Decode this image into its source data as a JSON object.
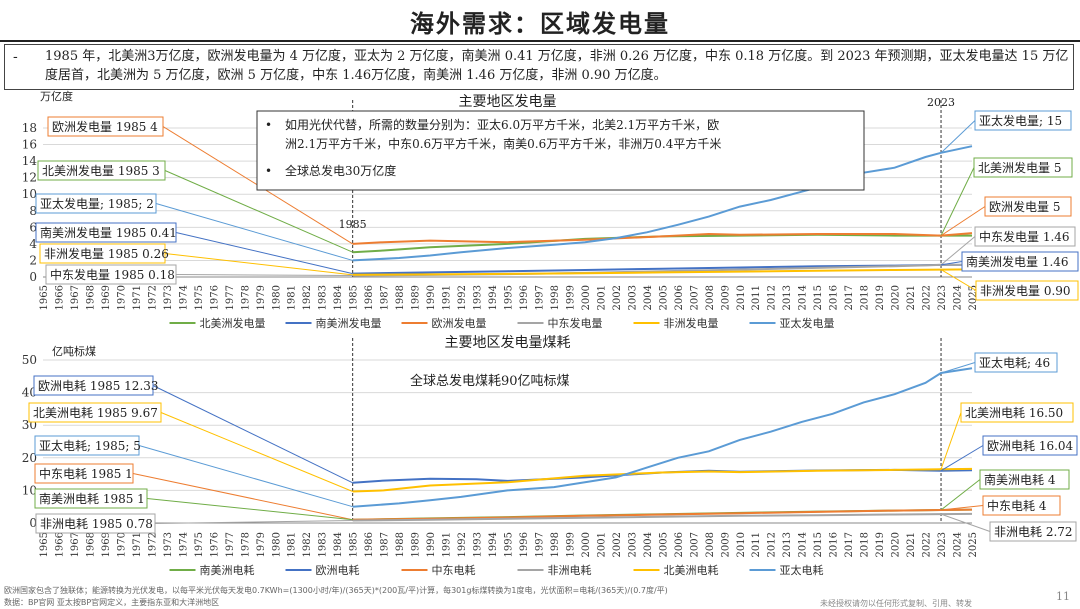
{
  "page": {
    "title": "海外需求：区域发电量",
    "summary_bullet": "-",
    "summary": "1985 年，北美洲3万亿度，欧洲发电量为 4 万亿度，亚太为 2 万亿度，南美洲 0.41 万亿度，非洲 0.26 万亿度，中东 0.18 万亿度。到 2023 年预测期，亚太发电量达 15 万亿度居首，北美洲为 5 万亿度，欧洲 5 万亿度，中东 1.46万亿度，南美洲 1.46 万亿度，非洲 0.90 万亿度。",
    "footnote": "欧洲国家包含了独联体；能源转换为光伏发电，以每平米光伏每天发电0.7KWh=(1300小时/年)/(365天)*(200瓦/平)计算，每301g标煤转换为1度电，光伏面积=电耗/(365天)/(0.7度/平)",
    "source": "数据：BP官网   亚太按BP官网定义，主要指东亚和大洋洲地区",
    "page_number": "11",
    "copyright": "未经授权请勿以任何形式复制、引用、转发"
  },
  "chart_data": [
    {
      "type": "line",
      "title": "主要地区发电量",
      "ylabel": "万亿度",
      "ylim": [
        0,
        18
      ],
      "yticks": [
        0,
        2,
        4,
        6,
        8,
        10,
        12,
        14,
        16,
        18
      ],
      "xlim": [
        1965,
        2025
      ],
      "grid": true,
      "legend_position": "bottom",
      "vline_labels": [
        {
          "x": 1985,
          "label": "1985"
        },
        {
          "x": 2023,
          "label": "2023"
        }
      ],
      "textbox": {
        "bullets": [
          "如用光伏代替，所需的数量分别为：亚太6.0万平方千米，北美2.1万平方千米，欧洲2.1万平方千米，中东0.6万平方千米，南美0.6万平方千米，非洲万0.4平方千米",
          "全球总发电30万亿度"
        ]
      },
      "series": [
        {
          "name": "北美洲发电量",
          "color": "#70ad47",
          "x": [
            1985,
            1987,
            1990,
            1995,
            2000,
            2005,
            2010,
            2015,
            2020,
            2023,
            2025
          ],
          "values": [
            3.0,
            3.2,
            3.6,
            4.0,
            4.6,
            4.9,
            5.0,
            5.1,
            5.0,
            5.0,
            5.0
          ]
        },
        {
          "name": "南美洲发电量",
          "color": "#4472c4",
          "x": [
            1985,
            1990,
            1995,
            2000,
            2005,
            2010,
            2015,
            2020,
            2023,
            2025
          ],
          "values": [
            0.41,
            0.55,
            0.7,
            0.85,
            1.0,
            1.15,
            1.3,
            1.38,
            1.46,
            1.46
          ]
        },
        {
          "name": "欧洲发电量",
          "color": "#ed7d31",
          "x": [
            1985,
            1987,
            1990,
            1995,
            2000,
            2005,
            2008,
            2010,
            2015,
            2020,
            2023,
            2025
          ],
          "values": [
            4.0,
            4.2,
            4.4,
            4.2,
            4.5,
            4.9,
            5.2,
            5.1,
            5.2,
            5.2,
            5.0,
            5.3
          ]
        },
        {
          "name": "中东发电量",
          "color": "#a5a5a5",
          "x": [
            1985,
            1990,
            1995,
            2000,
            2005,
            2010,
            2015,
            2020,
            2023,
            2025
          ],
          "values": [
            0.18,
            0.25,
            0.35,
            0.5,
            0.7,
            0.9,
            1.1,
            1.3,
            1.46,
            1.46
          ]
        },
        {
          "name": "非洲发电量",
          "color": "#ffc000",
          "x": [
            1985,
            1990,
            1995,
            2000,
            2005,
            2010,
            2015,
            2020,
            2023,
            2025
          ],
          "values": [
            0.26,
            0.32,
            0.38,
            0.45,
            0.55,
            0.65,
            0.75,
            0.85,
            0.9,
            0.92
          ]
        },
        {
          "name": "亚太发电量",
          "color": "#5b9bd5",
          "x": [
            1985,
            1988,
            1990,
            1992,
            1995,
            1998,
            2000,
            2002,
            2004,
            2006,
            2008,
            2010,
            2012,
            2014,
            2016,
            2018,
            2020,
            2022,
            2023,
            2025
          ],
          "values": [
            2.0,
            2.3,
            2.6,
            3.0,
            3.5,
            3.9,
            4.2,
            4.7,
            5.4,
            6.3,
            7.3,
            8.5,
            9.3,
            10.3,
            11.3,
            12.6,
            13.2,
            14.5,
            15.0,
            15.8
          ]
        }
      ],
      "callouts": [
        {
          "text": "欧洲发电量 1985 4",
          "series": 2,
          "x": 1985
        },
        {
          "text": "北美洲发电量 1985 3",
          "series": 0,
          "x": 1985
        },
        {
          "text": "亚太发电量; 1985; 2",
          "series": 5,
          "x": 1985
        },
        {
          "text": "南美洲发电量 1985 0.41",
          "series": 1,
          "x": 1985
        },
        {
          "text": "非洲发电量 1985 0.26",
          "series": 4,
          "x": 1985
        },
        {
          "text": "中东发电量 1985 0.18",
          "series": 3,
          "x": 1985
        },
        {
          "text": "亚太发电量; 15",
          "series": 5,
          "x": 2023
        },
        {
          "text": "北美洲发电量 5",
          "series": 0,
          "x": 2023
        },
        {
          "text": "欧洲发电量 5",
          "series": 2,
          "x": 2023
        },
        {
          "text": "中东发电量 1.46",
          "series": 3,
          "x": 2023
        },
        {
          "text": "南美洲发电量 1.46",
          "series": 1,
          "x": 2023
        },
        {
          "text": "非洲发电量 0.90",
          "series": 4,
          "x": 2023
        }
      ]
    },
    {
      "type": "line",
      "title": "主要地区发电量煤耗",
      "ylabel": "亿吨标煤",
      "ylim": [
        0,
        50
      ],
      "yticks": [
        0,
        10,
        20,
        30,
        40,
        50
      ],
      "xlim": [
        1965,
        2025
      ],
      "grid": true,
      "legend_position": "bottom",
      "vline_labels": [
        {
          "x": 1985,
          "label": ""
        },
        {
          "x": 2023,
          "label": ""
        }
      ],
      "annotation": "全球总发电煤耗90亿吨标煤",
      "series": [
        {
          "name": "南美洲电耗",
          "color": "#70ad47",
          "x": [
            1985,
            1990,
            1995,
            2000,
            2005,
            2010,
            2015,
            2020,
            2023,
            2025
          ],
          "values": [
            1.0,
            1.4,
            1.8,
            2.3,
            2.7,
            3.1,
            3.5,
            3.8,
            4.0,
            4.1
          ]
        },
        {
          "name": "欧洲电耗",
          "color": "#4472c4",
          "x": [
            1985,
            1987,
            1990,
            1993,
            1995,
            2000,
            2005,
            2008,
            2010,
            2015,
            2020,
            2023,
            2025
          ],
          "values": [
            12.33,
            13.0,
            13.6,
            13.4,
            12.9,
            14.0,
            15.5,
            16.0,
            15.7,
            16.1,
            16.3,
            16.04,
            16.2
          ]
        },
        {
          "name": "中东电耗",
          "color": "#ed7d31",
          "x": [
            1985,
            1990,
            1995,
            2000,
            2005,
            2010,
            2015,
            2020,
            2023,
            2025
          ],
          "values": [
            1.0,
            1.3,
            1.7,
            2.2,
            2.6,
            3.0,
            3.4,
            3.8,
            4.0,
            4.1
          ]
        },
        {
          "name": "非洲电耗",
          "color": "#a5a5a5",
          "x": [
            1985,
            1990,
            1995,
            2000,
            2005,
            2010,
            2015,
            2020,
            2023,
            2025
          ],
          "values": [
            0.78,
            1.0,
            1.3,
            1.6,
            1.9,
            2.2,
            2.4,
            2.6,
            2.72,
            2.8
          ]
        },
        {
          "name": "北美洲电耗",
          "color": "#ffc000",
          "x": [
            1985,
            1987,
            1990,
            1995,
            2000,
            2005,
            2008,
            2010,
            2015,
            2020,
            2023,
            2025
          ],
          "values": [
            9.67,
            10.0,
            11.5,
            12.5,
            14.5,
            15.5,
            15.8,
            15.6,
            16.0,
            16.3,
            16.5,
            16.6
          ]
        },
        {
          "name": "亚太电耗",
          "color": "#5b9bd5",
          "x": [
            1985,
            1988,
            1990,
            1992,
            1995,
            1998,
            2000,
            2002,
            2004,
            2006,
            2008,
            2010,
            2012,
            2014,
            2016,
            2018,
            2020,
            2022,
            2023,
            2025
          ],
          "values": [
            5.0,
            6.0,
            7.0,
            8.0,
            10.0,
            11.0,
            12.5,
            14.0,
            17.0,
            20.0,
            22.0,
            25.5,
            28.0,
            31.0,
            33.5,
            37.0,
            39.5,
            43.0,
            46.0,
            47.5
          ]
        }
      ],
      "callouts": [
        {
          "text": "欧洲电耗 1985 12.33",
          "series": 1,
          "x": 1985
        },
        {
          "text": "北美洲电耗 1985 9.67",
          "series": 4,
          "x": 1985
        },
        {
          "text": "亚太电耗; 1985; 5",
          "series": 5,
          "x": 1985
        },
        {
          "text": "中东电耗 1985 1",
          "series": 2,
          "x": 1985
        },
        {
          "text": "南美洲电耗 1985 1",
          "series": 0,
          "x": 1985
        },
        {
          "text": "非洲电耗 1985 0.78",
          "series": 3,
          "x": 1985
        },
        {
          "text": "亚太电耗; 46",
          "series": 5,
          "x": 2023
        },
        {
          "text": "北美洲电耗 16.50",
          "series": 4,
          "x": 2023
        },
        {
          "text": "欧洲电耗 16.04",
          "series": 1,
          "x": 2023
        },
        {
          "text": "南美洲电耗 4",
          "series": 0,
          "x": 2023
        },
        {
          "text": "中东电耗 4",
          "series": 2,
          "x": 2023
        },
        {
          "text": "非洲电耗 2.72",
          "series": 3,
          "x": 2023
        }
      ]
    }
  ]
}
